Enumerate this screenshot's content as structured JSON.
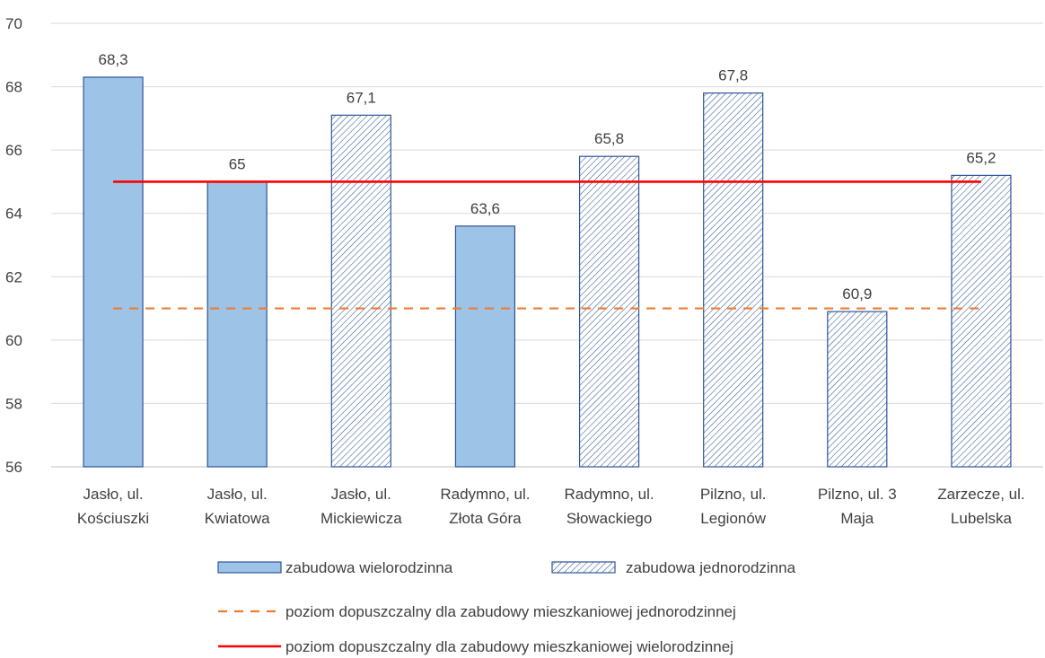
{
  "chart_data": {
    "type": "bar",
    "categories": [
      [
        "Jasło, ul.",
        "Kościuszki"
      ],
      [
        "Jasło, ul.",
        "Kwiatowa"
      ],
      [
        "Jasło, ul.",
        "Mickiewicza"
      ],
      [
        "Radymno, ul.",
        "Złota Góra"
      ],
      [
        "Radymno, ul.",
        "Słowackiego"
      ],
      [
        "Pilzno, ul.",
        "Legionów"
      ],
      [
        "Pilzno, ul. 3",
        "Maja"
      ],
      [
        "Zarzecze, ul.",
        "Lubelska"
      ]
    ],
    "values": [
      68.3,
      65,
      67.1,
      63.6,
      65.8,
      67.8,
      60.9,
      65.2
    ],
    "value_labels": [
      "68,3",
      "65",
      "67,1",
      "63,6",
      "65,8",
      "67,8",
      "60,9",
      "65,2"
    ],
    "bar_series": [
      0,
      0,
      1,
      0,
      1,
      1,
      1,
      1
    ],
    "series": [
      {
        "name": "zabudowa wielorodzinna",
        "style": "solid",
        "fill": "#9dc3e6",
        "stroke": "#2f5597"
      },
      {
        "name": "zabudowa jednorodzinna",
        "style": "hatched",
        "fill": "#ffffff",
        "stroke": "#2f5597",
        "hatch": "#2f5597"
      }
    ],
    "reference_lines": [
      {
        "name": "poziom dopuszczalny dla zabudowy mieszkaniowej jednorodzinnej",
        "value": 61,
        "color": "#ed7d31",
        "dashed": true
      },
      {
        "name": "poziom dopuszczalny dla zabudowy mieszkaniowej wielorodzinnej",
        "value": 65,
        "color": "#ff0000",
        "dashed": false
      }
    ],
    "ylim": [
      56,
      70
    ],
    "yticks": [
      56,
      58,
      60,
      62,
      64,
      66,
      68,
      70
    ],
    "grid": true,
    "legend_position": "bottom",
    "title": "",
    "xlabel": "",
    "ylabel": ""
  }
}
